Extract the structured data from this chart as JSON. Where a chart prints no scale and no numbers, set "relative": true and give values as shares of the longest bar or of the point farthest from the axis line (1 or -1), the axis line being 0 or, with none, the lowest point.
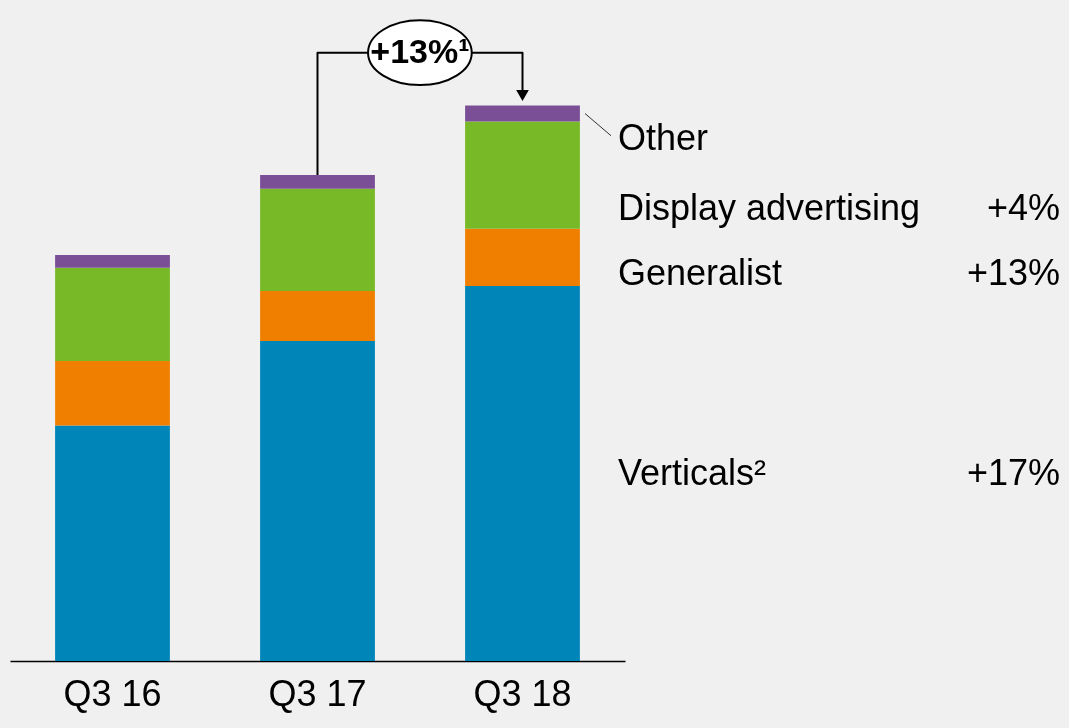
{
  "chart_data": {
    "type": "bar",
    "stacked": true,
    "relative": true,
    "categories": [
      "Q3 16",
      "Q3 17",
      "Q3 18"
    ],
    "series": [
      {
        "name": "Verticals²",
        "color": "#0085b9",
        "values": [
          0.424,
          0.576,
          0.675
        ]
      },
      {
        "name": "Generalist",
        "color": "#f07f00",
        "values": [
          0.116,
          0.09,
          0.103
        ]
      },
      {
        "name": "Display advertising",
        "color": "#78b928",
        "values": [
          0.168,
          0.184,
          0.193
        ]
      },
      {
        "name": "Other",
        "color": "#7b4f96",
        "values": [
          0.023,
          0.025,
          0.029
        ]
      }
    ],
    "annotations": [
      "+13%¹",
      "+4%",
      "+13%",
      "+17%"
    ]
  }
}
